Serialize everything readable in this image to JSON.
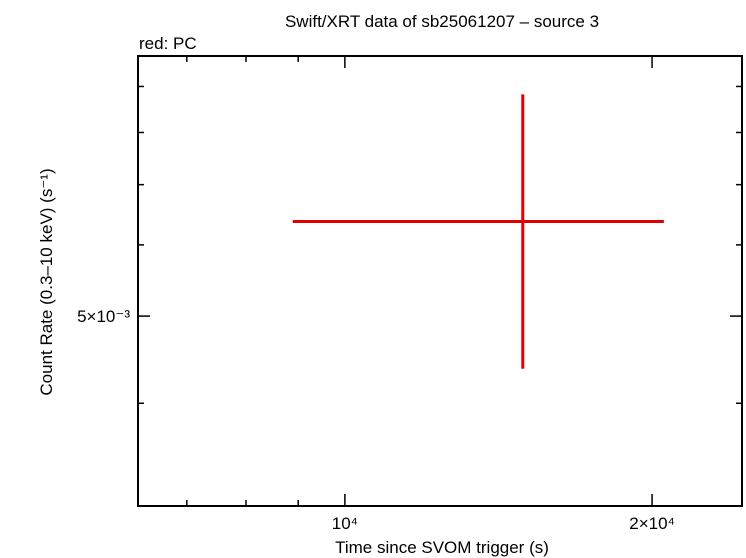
{
  "chart_data": {
    "type": "errorbar",
    "title": "Swift/XRT data of sb25061207 – source 3",
    "subtitle": "red: PC",
    "xlabel": "Time since SVOM trigger (s)",
    "ylabel": "Count Rate (0.3–10 keV) (s⁻¹)",
    "xscale": "log",
    "yscale": "log",
    "xlim": [
      6270,
      24500
    ],
    "ylim": [
      0.003075,
      0.00973
    ],
    "xticks": [
      {
        "value": 10000,
        "label": "10⁴"
      },
      {
        "value": 20000,
        "label": "2×10⁴"
      }
    ],
    "xminor": [
      7000,
      8000,
      9000
    ],
    "yticks": [
      {
        "value": 0.005,
        "label": "5×10⁻³"
      }
    ],
    "yminor": [
      0.004,
      0.006,
      0.007,
      0.008,
      0.009
    ],
    "series": [
      {
        "color": "#e00000",
        "x": [
          14940
        ],
        "xerr_minus": [
          6050
        ],
        "xerr_plus": [
          5600
        ],
        "y": [
          0.00637
        ],
        "yerr_minus": [
          0.002
        ],
        "yerr_plus": [
          0.00245
        ]
      }
    ]
  }
}
